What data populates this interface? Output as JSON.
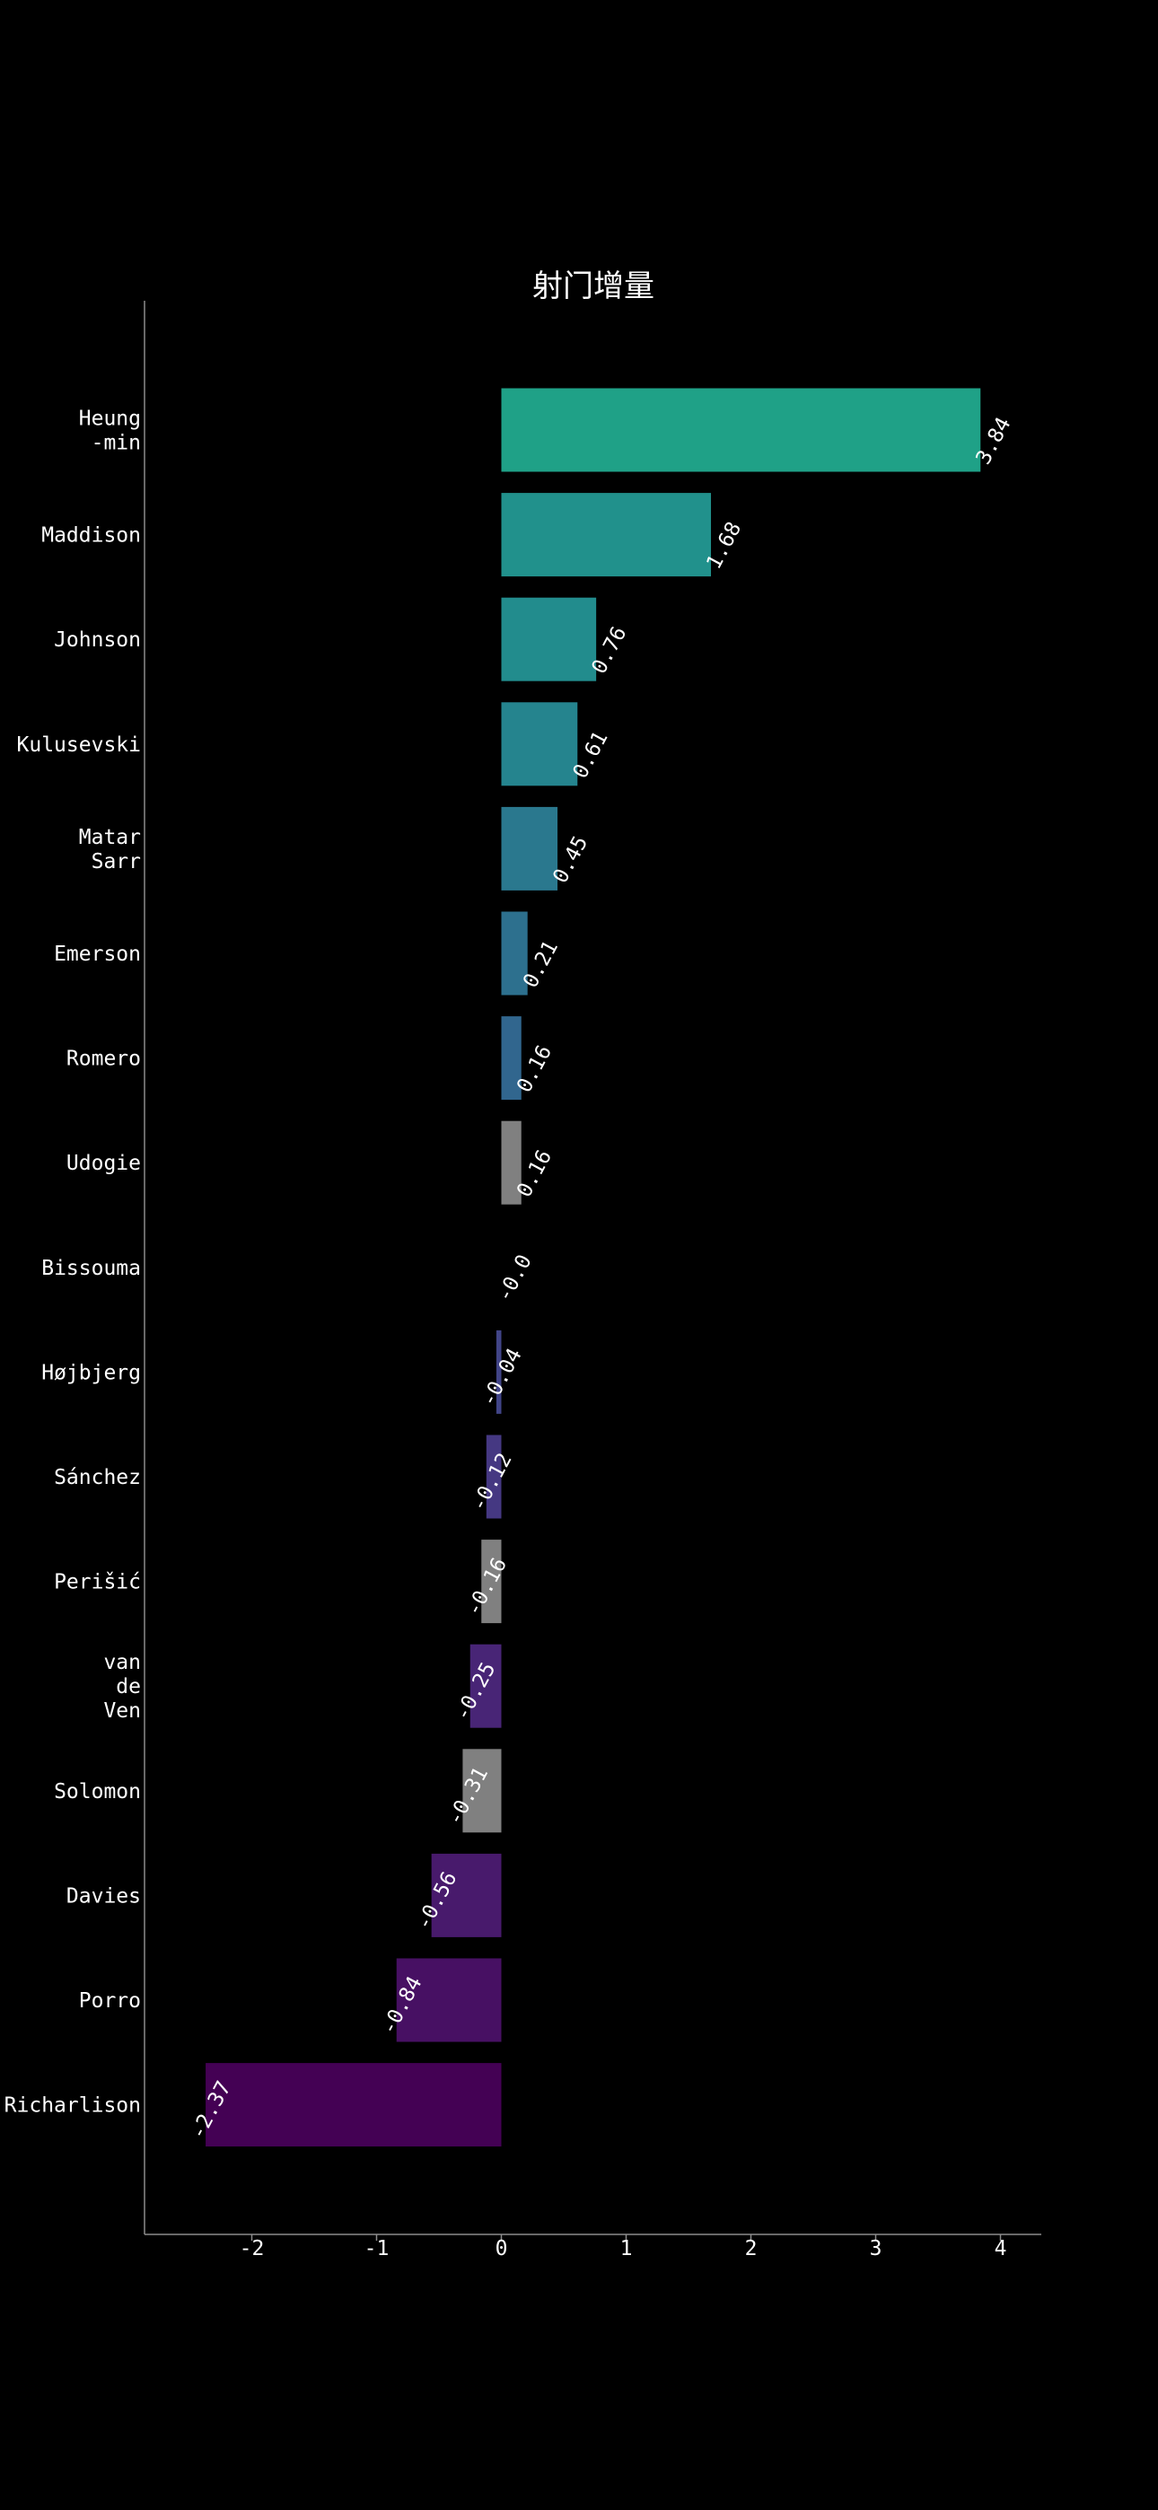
{
  "chart_data": {
    "type": "bar",
    "orientation": "horizontal",
    "title": "射门增量",
    "xlabel": "",
    "ylabel": "",
    "xlim": [
      -2.9,
      4.35
    ],
    "xticks": [
      -2,
      -1,
      0,
      1,
      2,
      3,
      4
    ],
    "xtick_labels": [
      "-2",
      "-1",
      "0",
      "1",
      "2",
      "3",
      "4"
    ],
    "grid": false,
    "legend": "none",
    "categories": [
      "Heung\n-min",
      "Maddison",
      "Johnson",
      "Kulusevski",
      "Matar\nSarr",
      "Emerson",
      "Romero",
      "Udogie",
      "Bissouma",
      "Højbjerg",
      "Sánchez",
      "Perišić",
      "van\nde\nVen",
      "Solomon",
      "Davies",
      "Porro",
      "Richarlison"
    ],
    "values": [
      3.84,
      1.68,
      0.76,
      0.61,
      0.45,
      0.21,
      0.16,
      0.16,
      -0.0,
      -0.04,
      -0.12,
      -0.16,
      -0.25,
      -0.31,
      -0.56,
      -0.84,
      -2.37
    ],
    "value_labels": [
      "3.84",
      "1.68",
      "0.76",
      "0.61",
      "0.45",
      "0.21",
      "0.16",
      "0.16",
      "-0.0",
      "-0.04",
      "-0.12",
      "-0.16",
      "-0.25",
      "-0.31",
      "-0.56",
      "-0.84",
      "-2.37"
    ],
    "colors": [
      "#1fa187",
      "#21918c",
      "#228c8d",
      "#25848e",
      "#2a788e",
      "#2d708e",
      "#31668e",
      "#808080",
      "#3b528b",
      "#414487",
      "#453882",
      "#808080",
      "#482576",
      "#808080",
      "#481a6c",
      "#471063",
      "#440154"
    ]
  }
}
